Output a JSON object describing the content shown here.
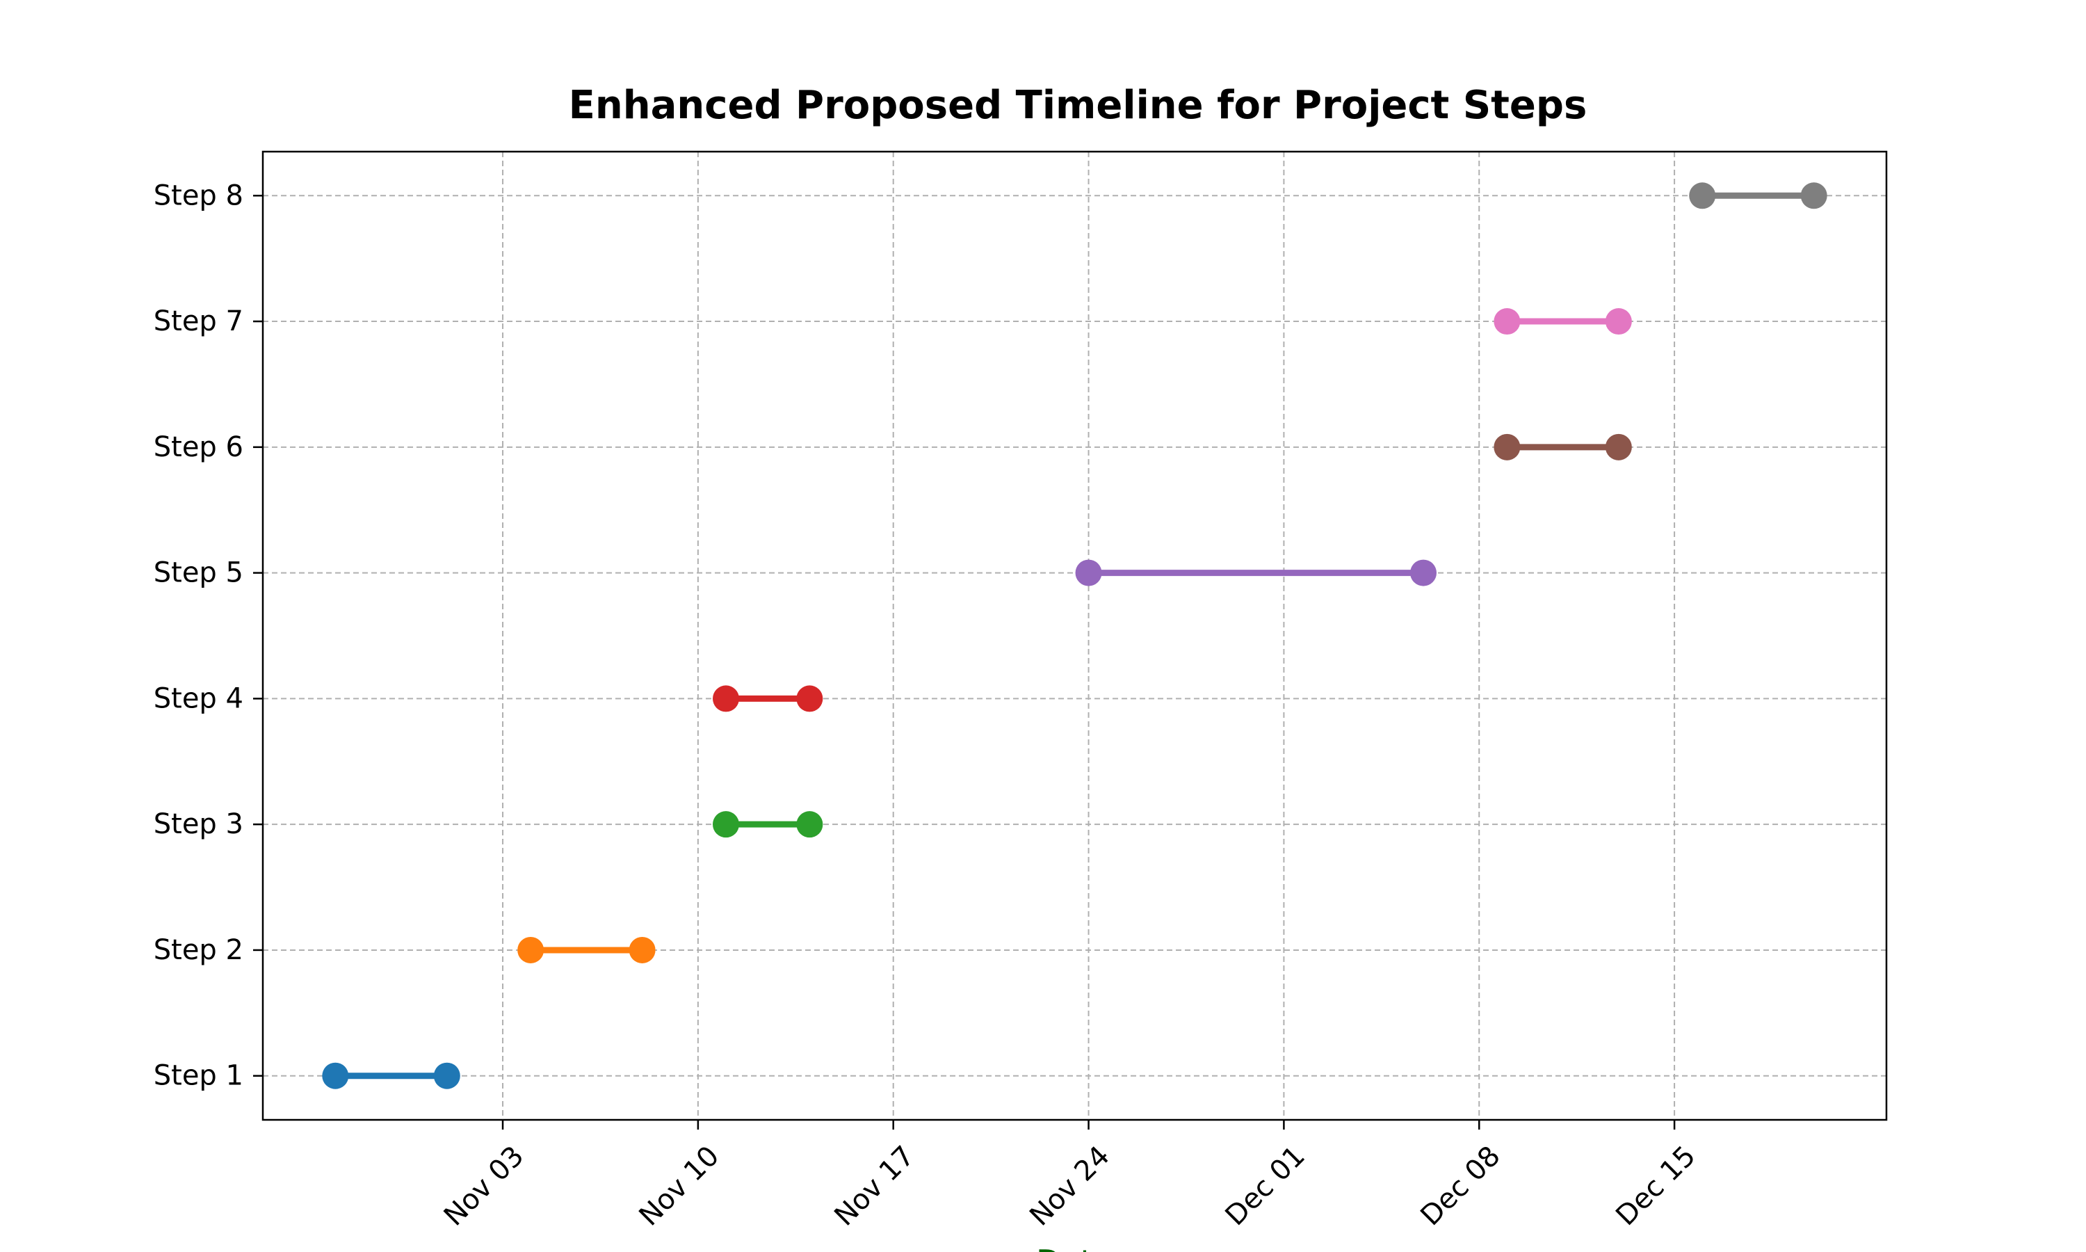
{
  "chart_data": {
    "type": "line",
    "title": "Enhanced Proposed Timeline for Project Steps",
    "xlabel": "Date",
    "ylabel": "",
    "xlabel_color": "#006400",
    "grid": true,
    "x_ticks": [
      {
        "date": "2024-11-03",
        "label": "Nov 03"
      },
      {
        "date": "2024-11-10",
        "label": "Nov 10"
      },
      {
        "date": "2024-11-17",
        "label": "Nov 17"
      },
      {
        "date": "2024-11-24",
        "label": "Nov 24"
      },
      {
        "date": "2024-12-01",
        "label": "Dec 01"
      },
      {
        "date": "2024-12-08",
        "label": "Dec 08"
      },
      {
        "date": "2024-12-15",
        "label": "Dec 15"
      }
    ],
    "xlim": [
      "2024-10-25.4",
      "2024-12-22.6"
    ],
    "ylim": [
      0.65,
      8.35
    ],
    "steps": [
      {
        "label": "Step 1",
        "y": 1,
        "start": "2024-10-28",
        "end": "2024-11-01",
        "color": "#1f77b4"
      },
      {
        "label": "Step 2",
        "y": 2,
        "start": "2024-11-04",
        "end": "2024-11-08",
        "color": "#ff7f0e"
      },
      {
        "label": "Step 3",
        "y": 3,
        "start": "2024-11-11",
        "end": "2024-11-14",
        "color": "#2ca02c"
      },
      {
        "label": "Step 4",
        "y": 4,
        "start": "2024-11-11",
        "end": "2024-11-14",
        "color": "#d62728"
      },
      {
        "label": "Step 5",
        "y": 5,
        "start": "2024-11-24",
        "end": "2024-12-06",
        "color": "#9467bd"
      },
      {
        "label": "Step 6",
        "y": 6,
        "start": "2024-12-09",
        "end": "2024-12-13",
        "color": "#8c564b"
      },
      {
        "label": "Step 7",
        "y": 7,
        "start": "2024-12-09",
        "end": "2024-12-13",
        "color": "#e377c2"
      },
      {
        "label": "Step 8",
        "y": 8,
        "start": "2024-12-16",
        "end": "2024-12-20",
        "color": "#7f7f7f"
      }
    ]
  }
}
